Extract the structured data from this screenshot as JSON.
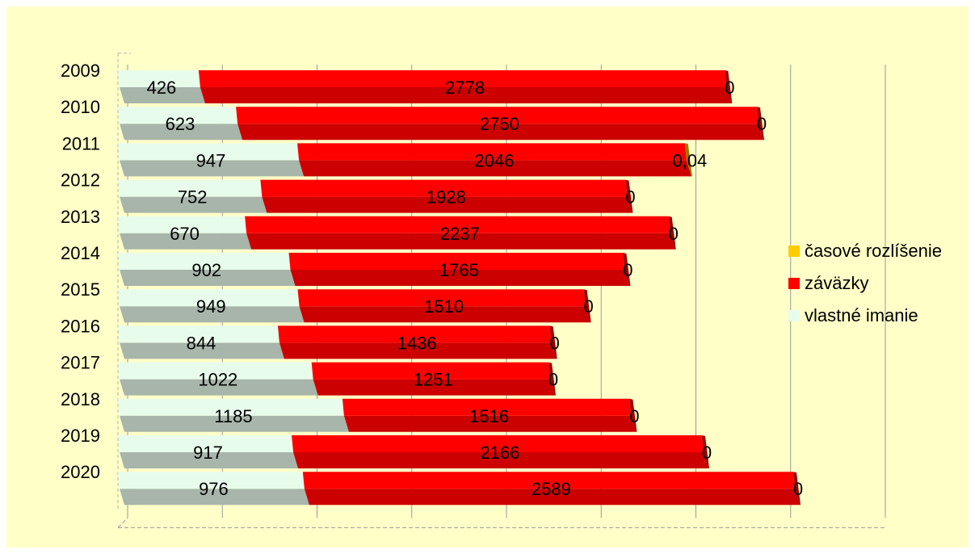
{
  "chart_data": {
    "type": "bar",
    "orientation": "horizontal",
    "stacked": true,
    "three_d": true,
    "categories": [
      "2009",
      "2010",
      "2011",
      "2012",
      "2013",
      "2014",
      "2015",
      "2016",
      "2017",
      "2018",
      "2019",
      "2020"
    ],
    "series": [
      {
        "name": "vlastné imanie",
        "color": "#e8fcec",
        "values": [
          426,
          623,
          947,
          752,
          670,
          902,
          949,
          844,
          1022,
          1185,
          917,
          976
        ],
        "labels": [
          "426",
          "623",
          "947",
          "752",
          "670",
          "902",
          "949",
          "844",
          "1022",
          "1185",
          "917",
          "976"
        ]
      },
      {
        "name": "záväzky",
        "color": "#ff0000",
        "values": [
          2778,
          2750,
          2046,
          1928,
          2237,
          1765,
          1510,
          1436,
          1251,
          1516,
          2166,
          2589
        ],
        "labels": [
          "2778",
          "2750",
          "2046",
          "1928",
          "2237",
          "1765",
          "1510",
          "1436",
          "1251",
          "1516",
          "2166",
          "2589"
        ]
      },
      {
        "name": "časové rozlíšenie",
        "color": "#ffcc00",
        "values": [
          0,
          0,
          0.04,
          0,
          0,
          0,
          0,
          0,
          0,
          0,
          0,
          0
        ],
        "labels": [
          "0",
          "0",
          "0,04",
          "0",
          "0",
          "0",
          "0",
          "0",
          "0",
          "0",
          "0",
          "0"
        ]
      }
    ],
    "xlim": [
      0,
      4000
    ],
    "grid": "vertical",
    "legend_position": "right",
    "title": "",
    "xlabel": "",
    "ylabel": ""
  }
}
